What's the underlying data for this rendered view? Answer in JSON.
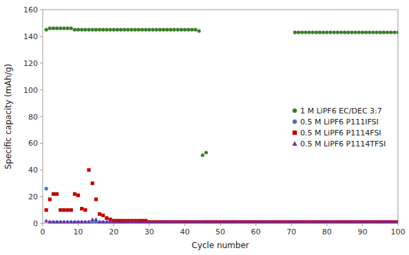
{
  "chart_data": {
    "type": "scatter",
    "xlabel": "Cycle number",
    "ylabel": "Specific capacity (mAh/g)",
    "xlim": [
      0,
      100
    ],
    "ylim": [
      0,
      160
    ],
    "xticks": [
      0,
      10,
      20,
      30,
      40,
      50,
      60,
      70,
      80,
      90,
      100
    ],
    "yticks": [
      0,
      20,
      40,
      60,
      80,
      100,
      120,
      140,
      160
    ],
    "grid": false,
    "legend": "right",
    "x": [
      1,
      2,
      3,
      4,
      5,
      6,
      7,
      8,
      9,
      10,
      11,
      12,
      13,
      14,
      15,
      16,
      17,
      18,
      19,
      20,
      21,
      22,
      23,
      24,
      25,
      26,
      27,
      28,
      29,
      30,
      31,
      32,
      33,
      34,
      35,
      36,
      37,
      38,
      39,
      40,
      41,
      42,
      43,
      44,
      45,
      46,
      47,
      48,
      49,
      50,
      51,
      52,
      53,
      54,
      55,
      56,
      57,
      58,
      59,
      60,
      61,
      62,
      63,
      64,
      65,
      66,
      67,
      68,
      69,
      70,
      71,
      72,
      73,
      74,
      75,
      76,
      77,
      78,
      79,
      80,
      81,
      82,
      83,
      84,
      85,
      86,
      87,
      88,
      89,
      90,
      91,
      92,
      93,
      94,
      95,
      96,
      97,
      98,
      99,
      100
    ],
    "series": [
      {
        "name": "1 M LiPF6 EC/DEC 3:7",
        "color": "#3a7d27",
        "marker": "circle",
        "values": [
          145,
          146,
          146,
          146,
          146,
          146,
          146,
          146,
          145,
          145,
          145,
          145,
          145,
          145,
          145,
          145,
          145,
          145,
          145,
          145,
          145,
          145,
          145,
          145,
          145,
          145,
          145,
          145,
          145,
          145,
          145,
          145,
          145,
          145,
          145,
          145,
          145,
          145,
          145,
          145,
          145,
          145,
          145,
          144,
          51,
          53,
          null,
          null,
          null,
          null,
          null,
          null,
          null,
          null,
          null,
          null,
          null,
          null,
          null,
          null,
          null,
          null,
          null,
          null,
          null,
          null,
          null,
          null,
          null,
          null,
          143,
          143,
          143,
          143,
          143,
          143,
          143,
          143,
          143,
          143,
          143,
          143,
          143,
          143,
          143,
          143,
          143,
          143,
          143,
          143,
          143,
          143,
          143,
          143,
          143,
          143,
          143,
          143,
          143,
          143
        ]
      },
      {
        "name": "0.5 M LiPF6 P111IFSI",
        "color": "#4472c4",
        "marker": "circle",
        "values": [
          26,
          1,
          1,
          1,
          1,
          1,
          1,
          1,
          1,
          1,
          1,
          1,
          1,
          1,
          1,
          1,
          1,
          1,
          1,
          1,
          1,
          1,
          1,
          1,
          1,
          1,
          1,
          1,
          1,
          1,
          1,
          1,
          1,
          1,
          1,
          1,
          1,
          1,
          1,
          1,
          1,
          1,
          1,
          1,
          1,
          1,
          1,
          1,
          1,
          1,
          1,
          1,
          1,
          1,
          1,
          1,
          1,
          1,
          1,
          1,
          1,
          1,
          1,
          1,
          1,
          1,
          1,
          1,
          1,
          1,
          1,
          1,
          1,
          1,
          1,
          1,
          1,
          1,
          1,
          1,
          1,
          1,
          1,
          1,
          1,
          1,
          1,
          1,
          1,
          1,
          1,
          1,
          1,
          1,
          1,
          1,
          1,
          1,
          1,
          1
        ]
      },
      {
        "name": "0.5 M LiPF6 P1114FSI",
        "color": "#c00000",
        "marker": "square",
        "values": [
          10,
          18,
          22,
          22,
          10,
          10,
          10,
          10,
          22,
          21,
          11,
          10,
          40,
          30,
          18,
          7,
          6,
          4,
          3,
          2,
          2,
          2,
          2,
          2,
          2,
          2,
          2,
          2,
          2,
          1,
          1,
          1,
          1,
          1,
          1,
          1,
          1,
          1,
          1,
          1,
          1,
          1,
          1,
          1,
          1,
          1,
          1,
          1,
          1,
          1,
          1,
          1,
          1,
          1,
          1,
          1,
          1,
          1,
          1,
          1,
          1,
          1,
          1,
          1,
          1,
          1,
          1,
          1,
          1,
          1,
          1,
          1,
          1,
          1,
          1,
          1,
          1,
          1,
          1,
          1,
          1,
          1,
          1,
          1,
          1,
          1,
          1,
          1,
          1,
          1,
          1,
          1,
          1,
          1,
          1,
          1,
          1,
          1,
          1,
          1
        ]
      },
      {
        "name": "0.5 M LiPF6 P1114TFSI",
        "color": "#7030a0",
        "marker": "triangle",
        "values": [
          2,
          1,
          1,
          1,
          1,
          1,
          1,
          1,
          1,
          1,
          1,
          1,
          1,
          3,
          3,
          1,
          1,
          1,
          1,
          1,
          1,
          1,
          1,
          1,
          1,
          1,
          1,
          1,
          1,
          1,
          1,
          1,
          1,
          1,
          1,
          1,
          1,
          1,
          1,
          1,
          1,
          1,
          1,
          1,
          1,
          1,
          1,
          1,
          1,
          1,
          1,
          1,
          1,
          1,
          1,
          1,
          1,
          1,
          1,
          1,
          1,
          1,
          1,
          1,
          1,
          1,
          1,
          1,
          1,
          1,
          1,
          1,
          1,
          1,
          1,
          1,
          1,
          1,
          1,
          1,
          1,
          1,
          1,
          1,
          1,
          1,
          1,
          1,
          1,
          1,
          1,
          1,
          1,
          1,
          1,
          1,
          1,
          1,
          1,
          1
        ]
      }
    ]
  }
}
